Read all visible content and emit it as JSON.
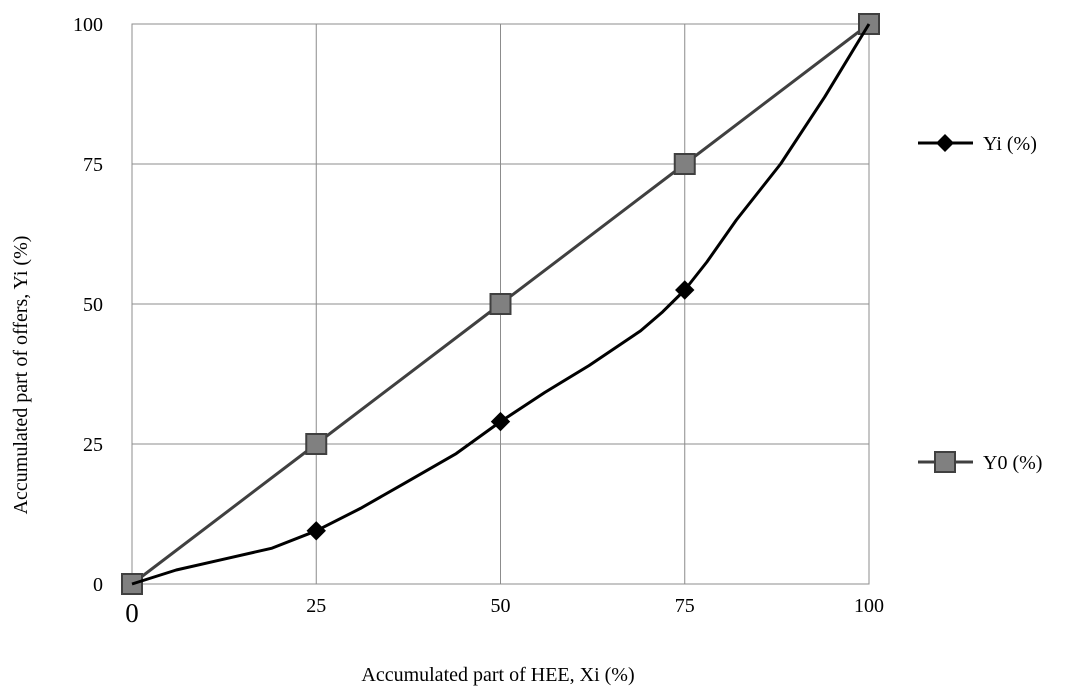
{
  "chart_data": {
    "type": "line",
    "xlabel": "Accumulated part of HEE, Xi (%)",
    "ylabel": "Accumulated part of offers, Yi (%)",
    "xlim": [
      0,
      100
    ],
    "ylim": [
      0,
      100
    ],
    "x_ticks": [
      "0",
      "25",
      "50",
      "75",
      "100"
    ],
    "y_ticks": [
      "0",
      "25",
      "50",
      "75",
      "100"
    ],
    "grid": true,
    "legend_position": "right",
    "series": [
      {
        "name": "Yi (%)",
        "color": "#000000",
        "marker": "diamond",
        "x": [
          0,
          6,
          12,
          19,
          25,
          31,
          37,
          44,
          50,
          56,
          62,
          69,
          72,
          75,
          78,
          82,
          88,
          94,
          100
        ],
        "y": [
          0,
          2.5,
          4.3,
          6.4,
          9.5,
          13.5,
          18,
          23.3,
          29,
          34.2,
          39,
          45.2,
          48.6,
          52.5,
          57.5,
          65,
          75,
          87,
          100
        ],
        "marker_x": [
          25,
          50,
          75
        ],
        "marker_y": [
          9.5,
          29,
          52.5
        ]
      },
      {
        "name": "Y0 (%)",
        "color": "#404040",
        "marker_fill": "#808080",
        "marker": "square",
        "x": [
          0,
          25,
          50,
          75,
          100
        ],
        "y": [
          0,
          25,
          50,
          75,
          100
        ],
        "marker_x": [
          0,
          25,
          50,
          75,
          100
        ],
        "marker_y": [
          0,
          25,
          50,
          75,
          100
        ]
      }
    ]
  }
}
